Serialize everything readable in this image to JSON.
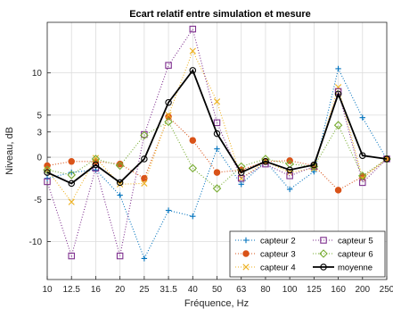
{
  "chart_data": {
    "type": "line",
    "title": "Ecart relatif entre simulation et mesure",
    "xlabel": "Fréquence, Hz",
    "ylabel": "Niveau, dB",
    "categories": [
      "10",
      "12.5",
      "16",
      "20",
      "25",
      "31.5",
      "40",
      "50",
      "63",
      "80",
      "100",
      "125",
      "160",
      "200",
      "250"
    ],
    "yticks": [
      -10,
      -5,
      0,
      3,
      5,
      10
    ],
    "ylim": [
      -14.5,
      16
    ],
    "grid": true,
    "legend_position": "bottom-right",
    "series": [
      {
        "name": "capteur 2",
        "color": "#0072BD",
        "marker": "plus",
        "dash": "1,2",
        "values": [
          -2.5,
          -1.8,
          -1.5,
          -4.5,
          -12.0,
          -6.3,
          -7.0,
          1.0,
          -3.2,
          -0.5,
          -3.8,
          -1.7,
          10.5,
          4.7,
          -0.2
        ]
      },
      {
        "name": "capteur 3",
        "color": "#D95319",
        "marker": "circle",
        "dash": "1,2",
        "values": [
          -1.0,
          -0.5,
          -0.5,
          -0.8,
          -2.5,
          4.8,
          2.0,
          -1.8,
          -1.5,
          -0.5,
          -0.4,
          -1.0,
          -3.9,
          -2.3,
          -0.2
        ]
      },
      {
        "name": "capteur 4",
        "color": "#EDB120",
        "marker": "x",
        "dash": "1,2",
        "values": [
          -1.5,
          -5.3,
          -0.1,
          -3.2,
          -3.1,
          5.0,
          12.6,
          6.6,
          -2.5,
          -0.5,
          -1.8,
          -1.3,
          8.3,
          -2.5,
          -0.2
        ]
      },
      {
        "name": "capteur 5",
        "color": "#7E2F8E",
        "marker": "square",
        "dash": "1,2",
        "values": [
          -2.9,
          -11.7,
          -1.3,
          -11.7,
          2.7,
          10.9,
          15.2,
          4.1,
          -2.5,
          -0.8,
          -2.2,
          -1.1,
          7.8,
          -3.0,
          -0.2
        ]
      },
      {
        "name": "capteur 6",
        "color": "#77AC30",
        "marker": "diamond",
        "dash": "1,2",
        "values": [
          -1.5,
          -2.1,
          -0.2,
          -1.0,
          2.6,
          4.2,
          -1.3,
          -3.7,
          -1.1,
          -0.2,
          -0.8,
          -1.1,
          3.8,
          -2.2,
          -0.2
        ]
      },
      {
        "name": "moyenne",
        "color": "#000000",
        "marker": "circle",
        "dash": "",
        "values": [
          -1.8,
          -3.1,
          -0.9,
          -3.0,
          -0.2,
          6.5,
          10.3,
          2.8,
          -1.8,
          -0.5,
          -1.5,
          -0.9,
          7.5,
          0.2,
          -0.2
        ]
      }
    ]
  }
}
